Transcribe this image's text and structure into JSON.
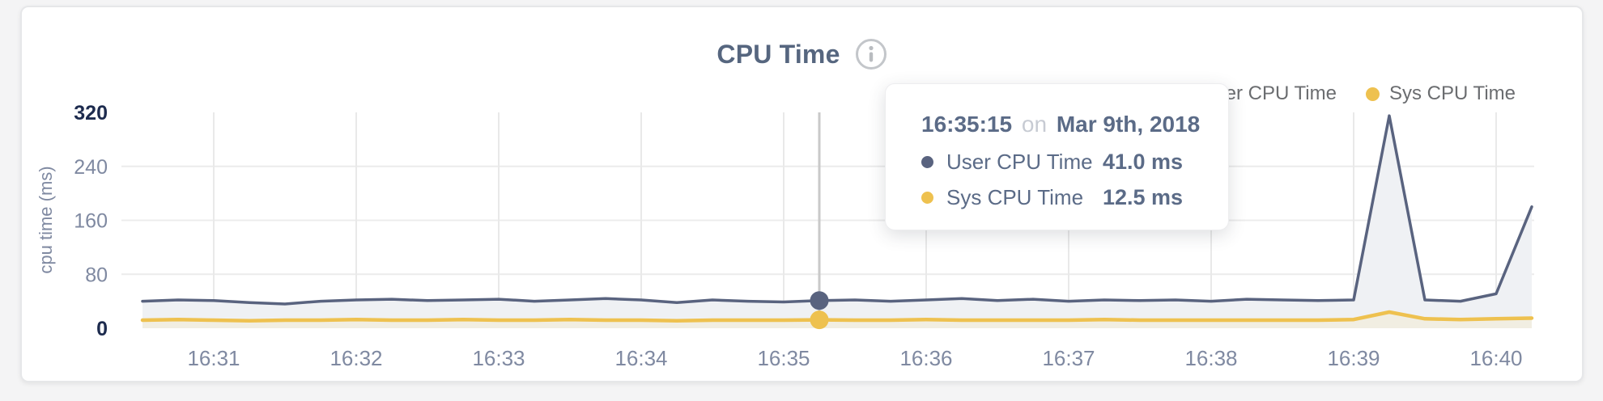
{
  "page": {
    "background": "#f4f4f5",
    "card_background": "#ffffff"
  },
  "colors": {
    "user": "#59637f",
    "sys": "#eec14f",
    "user_area": "#eff1f4",
    "sys_area": "#f1eee2",
    "grid_h": "#ececec",
    "grid_v": "#e9e9e9",
    "axis_label": "#7f89a1",
    "axis_label_strong": "#1d2b4e",
    "hover_line": "#c9c9c9",
    "title": "#56667f",
    "legend_text": "#6b6d70",
    "tooltip_text": "#5b6b87",
    "tooltip_muted": "#c7cbd3",
    "info_icon": "#c3c6ca"
  },
  "header": {
    "title": "CPU Time"
  },
  "legend": {
    "items": [
      {
        "label": "User CPU Time",
        "series": "user"
      },
      {
        "label": "Sys CPU Time",
        "series": "sys"
      }
    ]
  },
  "tooltip": {
    "time": "16:35:15",
    "connector": "on",
    "date": "Mar 9th, 2018",
    "rows": [
      {
        "label": "User CPU Time",
        "value": "41.0 ms",
        "series": "user"
      },
      {
        "label": "Sys CPU Time",
        "value": "12.5 ms",
        "series": "sys"
      }
    ]
  },
  "chart_data": {
    "type": "area",
    "title": "CPU Time",
    "ylabel": "cpu time (ms)",
    "ylim": [
      0,
      320
    ],
    "y_ticks": [
      0,
      80,
      160,
      240,
      320
    ],
    "x_ticks": [
      "16:31",
      "16:32",
      "16:33",
      "16:34",
      "16:35",
      "16:36",
      "16:37",
      "16:38",
      "16:39",
      "16:40"
    ],
    "grid": true,
    "legend_position": "top-right",
    "x": [
      "16:30:30",
      "16:30:45",
      "16:31:00",
      "16:31:15",
      "16:31:30",
      "16:31:45",
      "16:32:00",
      "16:32:15",
      "16:32:30",
      "16:32:45",
      "16:33:00",
      "16:33:15",
      "16:33:30",
      "16:33:45",
      "16:34:00",
      "16:34:15",
      "16:34:30",
      "16:34:45",
      "16:35:00",
      "16:35:15",
      "16:35:30",
      "16:35:45",
      "16:36:00",
      "16:36:15",
      "16:36:30",
      "16:36:45",
      "16:37:00",
      "16:37:15",
      "16:37:30",
      "16:37:45",
      "16:38:00",
      "16:38:15",
      "16:38:30",
      "16:38:45",
      "16:39:00",
      "16:39:15",
      "16:39:30",
      "16:39:45",
      "16:40:00",
      "16:40:15"
    ],
    "series": [
      {
        "name": "User CPU Time",
        "unit": "ms",
        "values": [
          40,
          42,
          41,
          38,
          36,
          40,
          42,
          43,
          41,
          42,
          43,
          40,
          42,
          44,
          42,
          38,
          42,
          40,
          39,
          41,
          42,
          40,
          42,
          44,
          41,
          43,
          40,
          42,
          41,
          42,
          40,
          43,
          42,
          41,
          42,
          315,
          42,
          40,
          51,
          180
        ]
      },
      {
        "name": "Sys CPU Time",
        "unit": "ms",
        "values": [
          12,
          13,
          12,
          11,
          12,
          12,
          13,
          12,
          12,
          13,
          12,
          12,
          13,
          12,
          12,
          11,
          12,
          12,
          12,
          12.5,
          12,
          12,
          13,
          12,
          12,
          12,
          12,
          13,
          12,
          12,
          12,
          12,
          12,
          12,
          13,
          24,
          14,
          13,
          14,
          15
        ]
      }
    ],
    "hover": {
      "time": "16:35:15",
      "user": 41.0,
      "sys": 12.5
    }
  }
}
